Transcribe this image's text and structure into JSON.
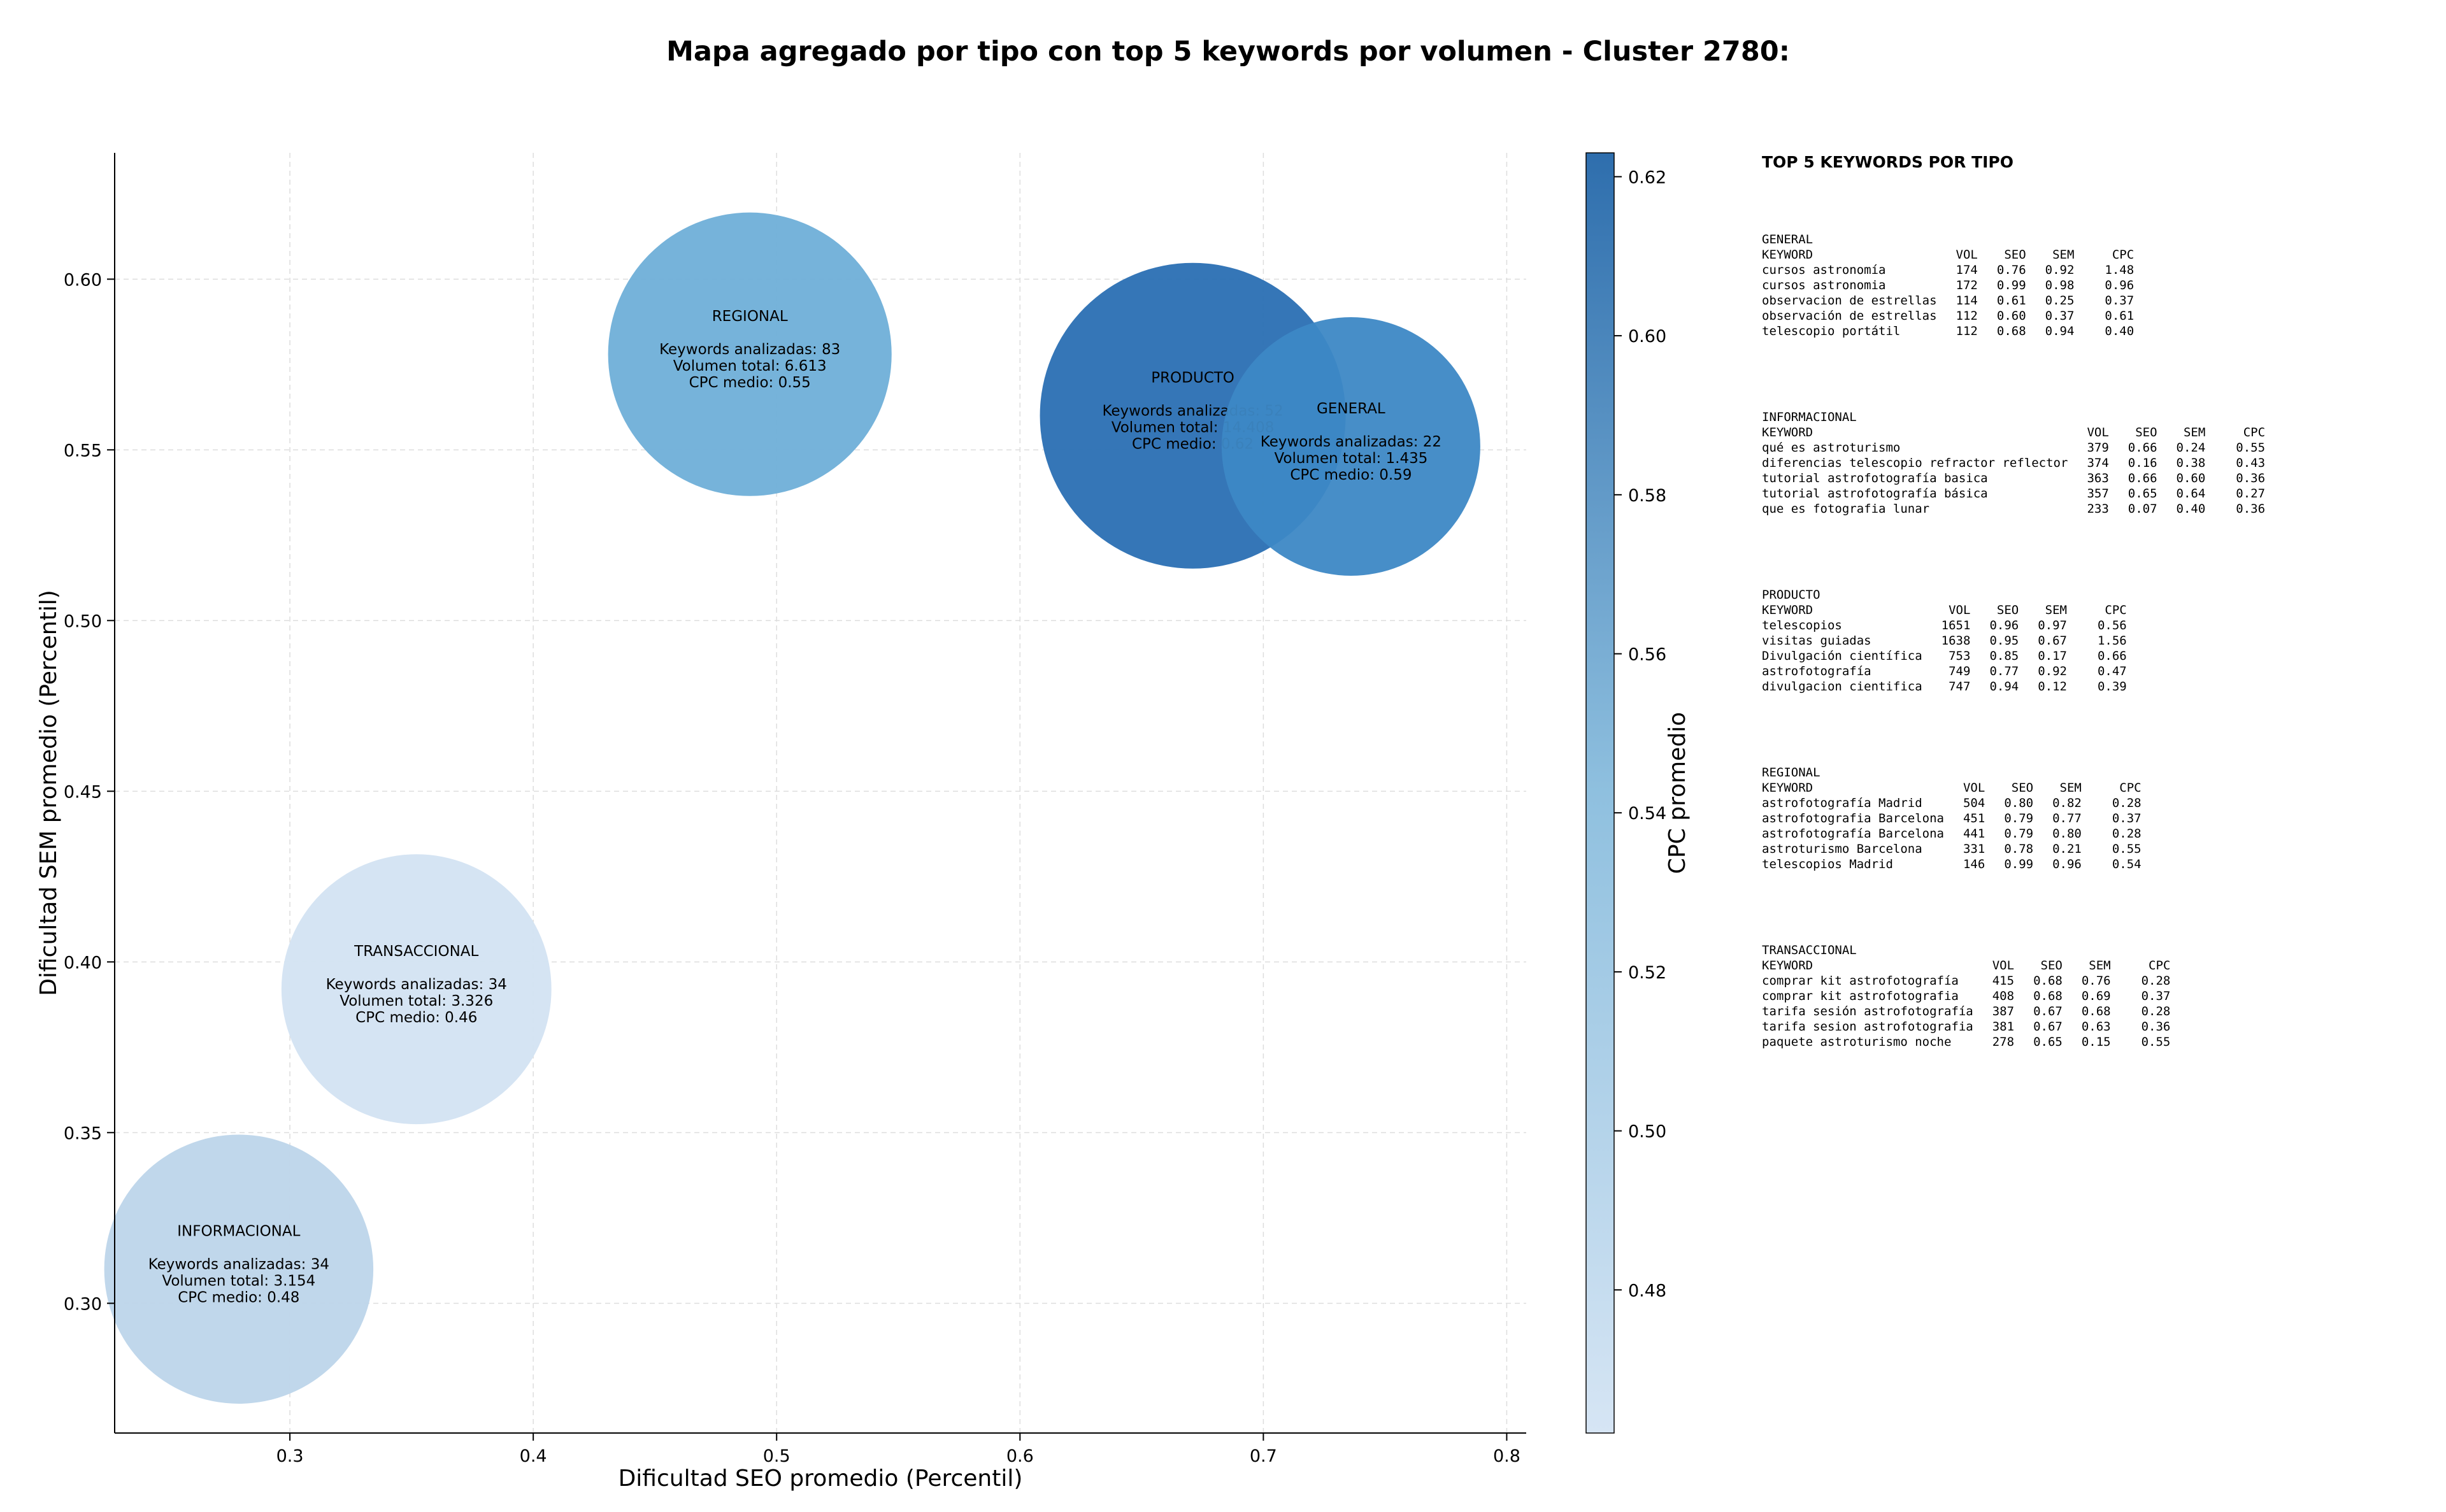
{
  "chart_data": {
    "type": "scatter",
    "title": "Mapa agregado por tipo con top 5 keywords por volumen - Cluster 2780:",
    "xlabel": "Dificultad SEO promedio (Percentil)",
    "ylabel": "Dificultad SEM promedio (Percentil)",
    "xlim": [
      0.228,
      0.808
    ],
    "ylim": [
      0.262,
      0.637
    ],
    "xticks": [
      "0.3",
      "0.4",
      "0.5",
      "0.6",
      "0.7",
      "0.8"
    ],
    "yticks": [
      "0.30",
      "0.35",
      "0.40",
      "0.45",
      "0.50",
      "0.55",
      "0.60"
    ],
    "grid": true,
    "colorbar": {
      "label": "CPC promedio",
      "range": [
        0.462,
        0.623
      ],
      "ticks": [
        "0.48",
        "0.50",
        "0.52",
        "0.54",
        "0.56",
        "0.58",
        "0.60",
        "0.62"
      ]
    },
    "points": [
      {
        "label": "REGIONAL",
        "x": 0.489,
        "y": 0.578,
        "keywords_line": "Keywords analizadas: 83",
        "volume_line": "Volumen total: 6.613",
        "cpc_line": "CPC medio: 0.55",
        "cpc": 0.55,
        "volume": 6613
      },
      {
        "label": "PRODUCTO",
        "x": 0.671,
        "y": 0.56,
        "keywords_line": "Keywords analizadas: 52",
        "volume_line": "Volumen total: 14.408",
        "cpc_line": "CPC medio: 0.62",
        "cpc": 0.62,
        "volume": 14408
      },
      {
        "label": "GENERAL",
        "x": 0.736,
        "y": 0.551,
        "keywords_line": "Keywords analizadas: 22",
        "volume_line": "Volumen total: 1.435",
        "cpc_line": "CPC medio: 0.59",
        "cpc": 0.59,
        "volume": 1435
      },
      {
        "label": "TRANSACCIONAL",
        "x": 0.352,
        "y": 0.392,
        "keywords_line": "Keywords analizadas: 34",
        "volume_line": "Volumen total: 3.326",
        "cpc_line": "CPC medio: 0.46",
        "cpc": 0.46,
        "volume": 3326
      },
      {
        "label": "INFORMACIONAL",
        "x": 0.279,
        "y": 0.31,
        "keywords_line": "Keywords analizadas: 34",
        "volume_line": "Volumen total: 3.154",
        "cpc_line": "CPC medio: 0.48",
        "cpc": 0.48,
        "volume": 3154
      }
    ]
  },
  "colors": {
    "REGIONAL": "#6fafd8",
    "PRODUCTO": "#2a6fb3",
    "GENERAL": "#3d88c5",
    "TRANSACCIONAL": "#d3e3f2",
    "INFORMACIONAL": "#bdd5ea",
    "colormap_low": "#d6e5f4",
    "colormap_high": "#2e6ead",
    "grid": "#dddddd",
    "axis": "#000000"
  },
  "panel": {
    "title": "TOP 5 KEYWORDS POR TIPO",
    "headers": {
      "keyword": "KEYWORD",
      "vol": "VOL",
      "seo": "SEO",
      "sem": "SEM",
      "cpc": "CPC"
    },
    "groups": [
      {
        "type": "GENERAL",
        "rows": [
          {
            "keyword": "cursos astronomía",
            "vol": "174",
            "seo": "0.76",
            "sem": "0.92",
            "cpc": "1.48"
          },
          {
            "keyword": "cursos astronomia",
            "vol": "172",
            "seo": "0.99",
            "sem": "0.98",
            "cpc": "0.96"
          },
          {
            "keyword": "observacion de estrellas",
            "vol": "114",
            "seo": "0.61",
            "sem": "0.25",
            "cpc": "0.37"
          },
          {
            "keyword": "observación de estrellas",
            "vol": "112",
            "seo": "0.60",
            "sem": "0.37",
            "cpc": "0.61"
          },
          {
            "keyword": "telescopio portátil",
            "vol": "112",
            "seo": "0.68",
            "sem": "0.94",
            "cpc": "0.40"
          }
        ]
      },
      {
        "type": "INFORMACIONAL",
        "rows": [
          {
            "keyword": "qué es astroturismo",
            "vol": "379",
            "seo": "0.66",
            "sem": "0.24",
            "cpc": "0.55"
          },
          {
            "keyword": "diferencias telescopio refractor reflector",
            "vol": "374",
            "seo": "0.16",
            "sem": "0.38",
            "cpc": "0.43"
          },
          {
            "keyword": "tutorial astrofotografía basica",
            "vol": "363",
            "seo": "0.66",
            "sem": "0.60",
            "cpc": "0.36"
          },
          {
            "keyword": "tutorial astrofotografía básica",
            "vol": "357",
            "seo": "0.65",
            "sem": "0.64",
            "cpc": "0.27"
          },
          {
            "keyword": "que es fotografia lunar",
            "vol": "233",
            "seo": "0.07",
            "sem": "0.40",
            "cpc": "0.36"
          }
        ]
      },
      {
        "type": "PRODUCTO",
        "rows": [
          {
            "keyword": "telescopios",
            "vol": "1651",
            "seo": "0.96",
            "sem": "0.97",
            "cpc": "0.56"
          },
          {
            "keyword": "visitas guiadas",
            "vol": "1638",
            "seo": "0.95",
            "sem": "0.67",
            "cpc": "1.56"
          },
          {
            "keyword": "Divulgación científica",
            "vol": "753",
            "seo": "0.85",
            "sem": "0.17",
            "cpc": "0.66"
          },
          {
            "keyword": "astrofotografía",
            "vol": "749",
            "seo": "0.77",
            "sem": "0.92",
            "cpc": "0.47"
          },
          {
            "keyword": "divulgacion cientifica",
            "vol": "747",
            "seo": "0.94",
            "sem": "0.12",
            "cpc": "0.39"
          }
        ]
      },
      {
        "type": "REGIONAL",
        "rows": [
          {
            "keyword": "astrofotografía Madrid",
            "vol": "504",
            "seo": "0.80",
            "sem": "0.82",
            "cpc": "0.28"
          },
          {
            "keyword": "astrofotografia Barcelona",
            "vol": "451",
            "seo": "0.79",
            "sem": "0.77",
            "cpc": "0.37"
          },
          {
            "keyword": "astrofotografía Barcelona",
            "vol": "441",
            "seo": "0.79",
            "sem": "0.80",
            "cpc": "0.28"
          },
          {
            "keyword": "astroturismo Barcelona",
            "vol": "331",
            "seo": "0.78",
            "sem": "0.21",
            "cpc": "0.55"
          },
          {
            "keyword": "telescopios Madrid",
            "vol": "146",
            "seo": "0.99",
            "sem": "0.96",
            "cpc": "0.54"
          }
        ]
      },
      {
        "type": "TRANSACCIONAL",
        "rows": [
          {
            "keyword": "comprar kit astrofotografía",
            "vol": "415",
            "seo": "0.68",
            "sem": "0.76",
            "cpc": "0.28"
          },
          {
            "keyword": "comprar kit astrofotografia",
            "vol": "408",
            "seo": "0.68",
            "sem": "0.69",
            "cpc": "0.37"
          },
          {
            "keyword": "tarifa sesión astrofotografía",
            "vol": "387",
            "seo": "0.67",
            "sem": "0.68",
            "cpc": "0.28"
          },
          {
            "keyword": "tarifa sesion astrofotografia",
            "vol": "381",
            "seo": "0.67",
            "sem": "0.63",
            "cpc": "0.36"
          },
          {
            "keyword": "paquete astroturismo noche",
            "vol": "278",
            "seo": "0.65",
            "sem": "0.15",
            "cpc": "0.55"
          }
        ]
      }
    ]
  }
}
